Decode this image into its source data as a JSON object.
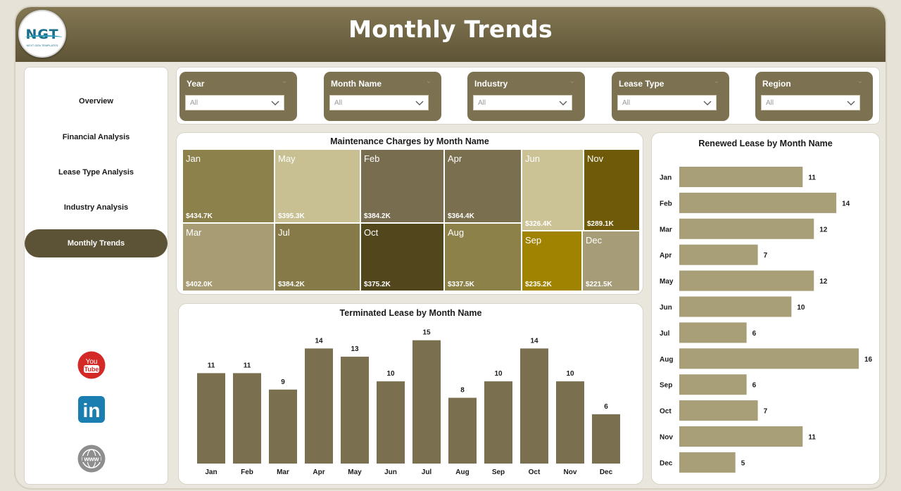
{
  "header": {
    "title": "Monthly Trends",
    "logo_text": "NGT",
    "logo_subtext": "NEXT GEN TEMPLATES"
  },
  "sidebar": {
    "items": [
      {
        "label": "Overview",
        "active": false
      },
      {
        "label": "Financial Analysis",
        "active": false
      },
      {
        "label": "Lease Type Analysis",
        "active": false
      },
      {
        "label": "Industry Analysis",
        "active": false
      },
      {
        "label": "Monthly Trends",
        "active": true
      }
    ],
    "social": [
      {
        "icon": "youtube-icon",
        "text1": "You",
        "text2": "Tube"
      },
      {
        "icon": "linkedin-icon",
        "text": "in"
      },
      {
        "icon": "website-icon",
        "text": "www"
      }
    ]
  },
  "filters": [
    {
      "label": "Year",
      "value": "All"
    },
    {
      "label": "Month Name",
      "value": "All"
    },
    {
      "label": "Industry",
      "value": "All"
    },
    {
      "label": "Lease Type",
      "value": "All"
    },
    {
      "label": "Region",
      "value": "All"
    }
  ],
  "colors": {
    "accent_dark": "#5c5337",
    "bar": "#7a6f4f",
    "hbar": "#a89e78"
  },
  "chart_data": [
    {
      "type": "treemap",
      "title": "Maintenance Charges by Month Name",
      "items": [
        {
          "name": "Jan",
          "value": 434.7,
          "label": "$434.7K",
          "color": "#8c814b"
        },
        {
          "name": "May",
          "value": 395.3,
          "label": "$395.3K",
          "color": "#c8bf92"
        },
        {
          "name": "Feb",
          "value": 384.2,
          "label": "$384.2K",
          "color": "#796d50"
        },
        {
          "name": "Apr",
          "value": 364.4,
          "label": "$364.4K",
          "color": "#7a6f4f"
        },
        {
          "name": "Jun",
          "value": 326.4,
          "label": "$326.4K",
          "color": "#cbc296"
        },
        {
          "name": "Nov",
          "value": 289.1,
          "label": "$289.1K",
          "color": "#6e5a08"
        },
        {
          "name": "Mar",
          "value": 402.0,
          "label": "$402.0K",
          "color": "#a89c74"
        },
        {
          "name": "Jul",
          "value": 384.2,
          "label": "$384.2K",
          "color": "#867b48"
        },
        {
          "name": "Oct",
          "value": 375.2,
          "label": "$375.2K",
          "color": "#52461d"
        },
        {
          "name": "Aug",
          "value": 337.5,
          "label": "$337.5K",
          "color": "#8c8148"
        },
        {
          "name": "Sep",
          "value": 235.2,
          "label": "$235.2K",
          "color": "#a08300"
        },
        {
          "name": "Dec",
          "value": 221.5,
          "label": "$221.5K",
          "color": "#a69c77"
        }
      ]
    },
    {
      "type": "bar",
      "title": "Terminated Lease by Month Name",
      "categories": [
        "Jan",
        "Feb",
        "Mar",
        "Apr",
        "May",
        "Jun",
        "Jul",
        "Aug",
        "Sep",
        "Oct",
        "Nov",
        "Dec"
      ],
      "values": [
        11,
        11,
        9,
        14,
        13,
        10,
        15,
        8,
        10,
        14,
        10,
        6
      ],
      "ylim": [
        0,
        16
      ]
    },
    {
      "type": "bar",
      "orientation": "horizontal",
      "title": "Renewed Lease by Month Name",
      "categories": [
        "Jan",
        "Feb",
        "Mar",
        "Apr",
        "May",
        "Jun",
        "Jul",
        "Aug",
        "Sep",
        "Oct",
        "Nov",
        "Dec"
      ],
      "values": [
        11,
        14,
        12,
        7,
        12,
        10,
        6,
        16,
        6,
        7,
        11,
        5
      ],
      "xlim": [
        0,
        16
      ]
    }
  ]
}
